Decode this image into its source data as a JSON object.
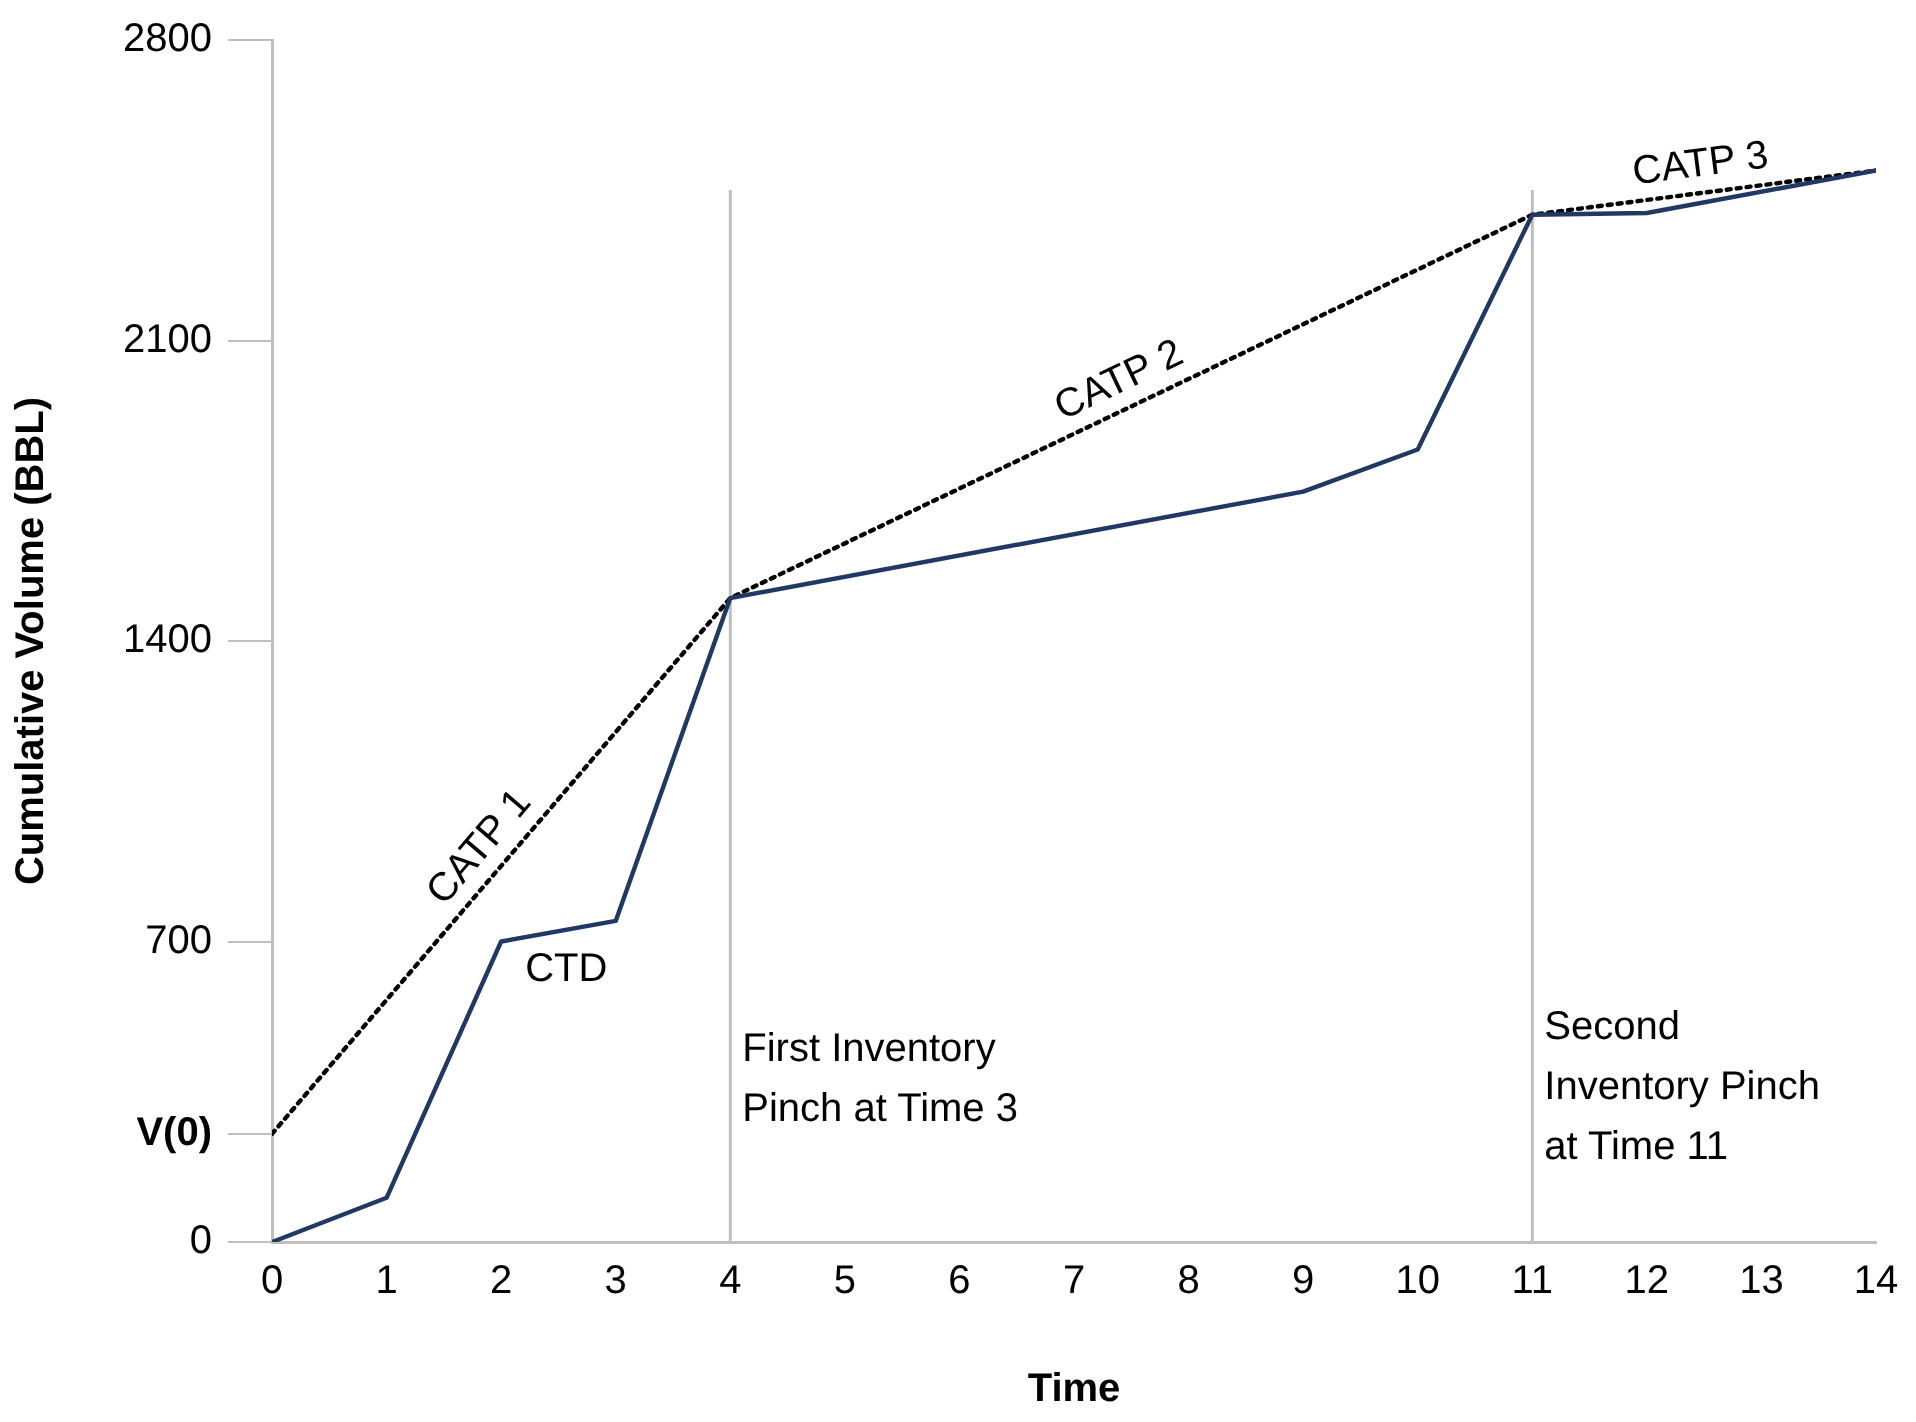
{
  "chart_data": {
    "type": "line",
    "xlabel": "Time",
    "ylabel": "Cumulative Volume (BBL)",
    "xlim": [
      0,
      14
    ],
    "xticks": [
      0,
      1,
      2,
      3,
      4,
      5,
      6,
      7,
      8,
      9,
      10,
      11,
      12,
      13,
      14
    ],
    "ylim": [
      0,
      2800
    ],
    "yticks": [
      0,
      {
        "value": 252,
        "label": "V(0)"
      },
      700,
      1400,
      2100,
      2800
    ],
    "grid": false,
    "legend": false,
    "marker": "none",
    "series": [
      {
        "name": "CTD",
        "color": "#203864",
        "line_style": "solid",
        "x": [
          0,
          1,
          2,
          3,
          4,
          9,
          10,
          11,
          12,
          14
        ],
        "values": [
          0,
          103,
          700,
          748,
          1500,
          1748,
          1846,
          2393,
          2397,
          2496
        ]
      },
      {
        "color": "#000000",
        "line_style": "dotted",
        "x": [
          0,
          4,
          11,
          14
        ],
        "values": [
          252,
          1500,
          2393,
          2496
        ]
      }
    ],
    "annotations": [
      {
        "text": "CATP 1",
        "x": 2,
        "y": 876
      },
      {
        "text": "CATP 2",
        "x": 7.5,
        "y": 1946.5
      },
      {
        "text": "CATP 3",
        "x": 12.5,
        "y": 2444.5
      }
    ],
    "ref_lines": [
      {
        "axis": "x",
        "value": 4,
        "label": "First Inventory\nPinch at Time 3",
        "color": "#bfbfbf"
      },
      {
        "axis": "x",
        "value": 11,
        "label": "Second\nInventory Pinch\nat Time 11",
        "color": "#bfbfbf"
      }
    ]
  }
}
